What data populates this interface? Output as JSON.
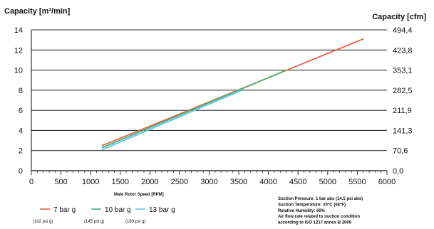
{
  "chart_data": {
    "type": "line",
    "ylabel_left": "Capacity [m³/min]",
    "ylabel_right": "Capacity [cfm]",
    "xlabel": "Male Rotor Speed [RPM]",
    "xlim": [
      0,
      6000
    ],
    "ylim": [
      0,
      14
    ],
    "grid": "horizontal",
    "x_ticks": [
      "0",
      "500",
      "1000",
      "1500",
      "2000",
      "2500",
      "3000",
      "3500",
      "4000",
      "4500",
      "5000",
      "5500",
      "6000"
    ],
    "y_ticks_left": [
      "0",
      "2",
      "4",
      "6",
      "8",
      "10",
      "12",
      "14"
    ],
    "y_ticks_right": [
      "0,0",
      "70,6",
      "141,3",
      "211,9",
      "282,5",
      "353,1",
      "423,8",
      "494,4"
    ],
    "series": [
      {
        "name": "7 bar g",
        "subtitle": "(102 psi g)",
        "color": "#e8604c",
        "x": [
          1200,
          5600
        ],
        "y": [
          2.5,
          13.1
        ]
      },
      {
        "name": "10 bar g",
        "subtitle": "(145 psi g)",
        "color": "#4fae7a",
        "x": [
          1200,
          4300
        ],
        "y": [
          2.3,
          10.0
        ]
      },
      {
        "name": "13 bar g",
        "subtitle": "(189 psi g)",
        "color": "#5bc8e8",
        "x": [
          1200,
          3550
        ],
        "y": [
          2.1,
          8.0
        ]
      }
    ],
    "notes": [
      "Suction Pressure:   1 bar abs  (14.5 psi abs)",
      "Suction Temperature:   20°C (68°F)",
      "Relative Humidity:   60%",
      "Air flow rate related to suction condition",
      "according to ISO 1217 annex B 2009"
    ]
  }
}
